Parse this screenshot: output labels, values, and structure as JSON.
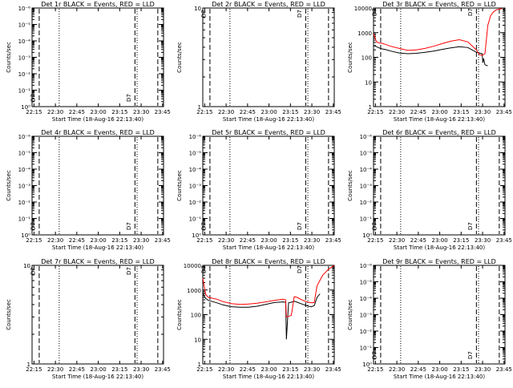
{
  "chart_data": [
    {
      "type": "line",
      "title": "Det 1r BLACK = Events, RED = LLD",
      "xlabel": "Start Time (18-Aug-16 22:13:40)",
      "ylabel": "Counts/sec",
      "x_tick_labels": [
        "22:15",
        "22:30",
        "22:45",
        "23:00",
        "23:15",
        "23:30",
        "23:45"
      ],
      "y_scale": "log",
      "ylim": [
        1,
        1e-06
      ],
      "y_tick_labels": [
        "10⁰",
        "10⁻¹",
        "10⁻²",
        "10⁻³",
        "10⁻⁴",
        "10⁻⁵",
        "10⁻⁶"
      ],
      "event_labels": [
        "D7",
        "D7"
      ],
      "series": []
    },
    {
      "type": "line",
      "title": "Det 2r BLACK = Events, RED = LLD",
      "xlabel": "Start Time (18-Aug-16 22:13:40)",
      "ylabel": "Counts/sec",
      "x_tick_labels": [
        "22:15",
        "22:30",
        "22:45",
        "23:00",
        "23:15",
        "23:30",
        "23:45"
      ],
      "y_scale": "log",
      "ylim": [
        1,
        10
      ],
      "y_tick_labels": [
        "1",
        "10"
      ],
      "event_labels": [
        "D7",
        "D7"
      ],
      "series": []
    },
    {
      "type": "line",
      "title": "Det 3r BLACK = Events, RED = LLD",
      "xlabel": "Start Time (18-Aug-16 22:13:40)",
      "ylabel": "Counts/sec",
      "x_tick_labels": [
        "22:15",
        "22:30",
        "22:45",
        "23:00",
        "23:15",
        "23:30",
        "23:45"
      ],
      "y_scale": "log",
      "ylim": [
        1,
        10000
      ],
      "y_tick_labels": [
        "1",
        "10",
        "100",
        "1000",
        "10000"
      ],
      "event_labels": [
        "D7",
        "D7"
      ],
      "series": [
        {
          "color": "#000000",
          "x": [
            0,
            2,
            4,
            6,
            8,
            12,
            18,
            24,
            30,
            36,
            42,
            48,
            54,
            60,
            66,
            72,
            74,
            76,
            76.5,
            77,
            78,
            80
          ],
          "y": [
            300,
            270,
            240,
            220,
            210,
            180,
            150,
            140,
            145,
            160,
            180,
            210,
            240,
            270,
            250,
            160,
            150,
            140,
            60,
            90,
            50,
            45
          ]
        },
        {
          "color": "#ff0000",
          "x": [
            0,
            2,
            4,
            6,
            8,
            12,
            18,
            24,
            30,
            36,
            42,
            48,
            54,
            60,
            66,
            72,
            74,
            76,
            78,
            80,
            82,
            84,
            86,
            88,
            90
          ],
          "y": [
            900,
            430,
            380,
            370,
            340,
            280,
            230,
            190,
            200,
            230,
            280,
            360,
            450,
            520,
            420,
            200,
            130,
            120,
            140,
            2000,
            5000,
            7000,
            8500,
            9000,
            9500
          ]
        }
      ]
    },
    {
      "type": "line",
      "title": "Det 4r BLACK = Events, RED = LLD",
      "xlabel": "Start Time (18-Aug-16 22:13:40)",
      "ylabel": "Counts/sec",
      "x_tick_labels": [
        "22:15",
        "22:30",
        "22:45",
        "23:00",
        "23:15",
        "23:30",
        "23:45"
      ],
      "y_scale": "log",
      "ylim": [
        1,
        1e-06
      ],
      "y_tick_labels": [
        "10⁰",
        "10⁻¹",
        "10⁻²",
        "10⁻³",
        "10⁻⁴",
        "10⁻⁵",
        "10⁻⁶"
      ],
      "event_labels": [
        "D7",
        "D7"
      ],
      "series": []
    },
    {
      "type": "line",
      "title": "Det 5r BLACK = Events, RED = LLD",
      "xlabel": "Start Time (18-Aug-16 22:13:40)",
      "ylabel": "Counts/sec",
      "x_tick_labels": [
        "22:15",
        "22:30",
        "22:45",
        "23:00",
        "23:15",
        "23:30",
        "23:45"
      ],
      "y_scale": "log",
      "ylim": [
        1,
        1e-06
      ],
      "y_tick_labels": [
        "10⁰",
        "10⁻¹",
        "10⁻²",
        "10⁻³",
        "10⁻⁴",
        "10⁻⁵",
        "10⁻⁶"
      ],
      "event_labels": [
        "D7",
        "D7"
      ],
      "series": []
    },
    {
      "type": "line",
      "title": "Det 6r BLACK = Events, RED = LLD",
      "xlabel": "Start Time (18-Aug-16 22:13:40)",
      "ylabel": "Counts/sec",
      "x_tick_labels": [
        "22:15",
        "22:30",
        "22:45",
        "23:00",
        "23:15",
        "23:30",
        "23:45"
      ],
      "y_scale": "log",
      "ylim": [
        1,
        1e-06
      ],
      "y_tick_labels": [
        "10⁰",
        "10⁻¹",
        "10⁻²",
        "10⁻³",
        "10⁻⁴",
        "10⁻⁵",
        "10⁻⁶"
      ],
      "event_labels": [
        "D7",
        "D7"
      ],
      "series": []
    },
    {
      "type": "line",
      "title": "Det 7r BLACK = Events, RED = LLD",
      "xlabel": "Start Time (18-Aug-16 22:13:40)",
      "ylabel": "Counts/sec",
      "x_tick_labels": [
        "22:15",
        "22:30",
        "22:45",
        "23:00",
        "23:15",
        "23:30",
        "23:45"
      ],
      "y_scale": "log",
      "ylim": [
        1,
        10
      ],
      "y_tick_labels": [
        "1",
        "10"
      ],
      "event_labels": [
        "D7",
        "D7"
      ],
      "series": []
    },
    {
      "type": "line",
      "title": "Det 8r BLACK = Events, RED = LLD",
      "xlabel": "Start Time (18-Aug-16 22:13:40)",
      "ylabel": "Counts/sec",
      "x_tick_labels": [
        "22:15",
        "22:30",
        "22:45",
        "23:00",
        "23:15",
        "23:30",
        "23:45"
      ],
      "y_scale": "log",
      "ylim": [
        1,
        10000
      ],
      "y_tick_labels": [
        "1",
        "10",
        "100",
        "1000",
        "10000"
      ],
      "event_labels": [
        "D7",
        "D7"
      ],
      "series": [
        {
          "color": "#000000",
          "x": [
            0,
            2,
            4,
            6,
            10,
            14,
            20,
            26,
            32,
            38,
            44,
            50,
            56,
            58,
            58.5,
            60,
            62,
            64,
            66,
            70,
            74,
            76,
            78,
            80,
            82
          ],
          "y": [
            700,
            450,
            380,
            350,
            300,
            250,
            210,
            200,
            200,
            220,
            260,
            310,
            330,
            320,
            10,
            300,
            320,
            350,
            320,
            260,
            220,
            210,
            230,
            500,
            700
          ]
        },
        {
          "color": "#ff0000",
          "x": [
            0,
            2,
            4,
            6,
            10,
            14,
            20,
            26,
            32,
            38,
            44,
            50,
            56,
            58,
            58.5,
            60,
            62,
            64,
            66,
            70,
            74,
            76,
            78,
            80,
            84,
            88,
            92
          ],
          "y": [
            3000,
            650,
            500,
            470,
            420,
            340,
            280,
            260,
            270,
            290,
            330,
            380,
            420,
            400,
            80,
            85,
            95,
            540,
            500,
            380,
            320,
            300,
            310,
            1500,
            4000,
            7000,
            10000
          ]
        }
      ]
    },
    {
      "type": "line",
      "title": "Det 9r BLACK = Events, RED = LLD",
      "xlabel": "Start Time (18-Aug-16 22:13:40)",
      "ylabel": "Counts/sec",
      "x_tick_labels": [
        "22:15",
        "22:30",
        "22:45",
        "23:00",
        "23:15",
        "23:30",
        "23:45"
      ],
      "y_scale": "log",
      "ylim": [
        1,
        1e-06
      ],
      "y_tick_labels": [
        "10⁰",
        "10⁻¹",
        "10⁻²",
        "10⁻³",
        "10⁻⁴",
        "10⁻⁵",
        "10⁻⁶"
      ],
      "event_labels": [
        "D7",
        "D7"
      ],
      "series": []
    }
  ]
}
